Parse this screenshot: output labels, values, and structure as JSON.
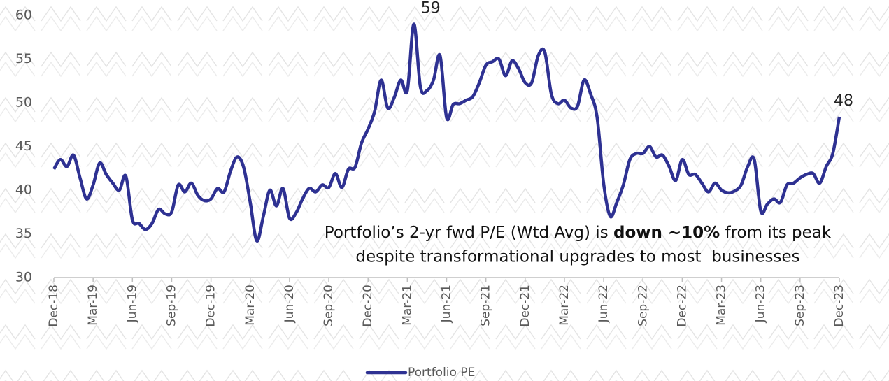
{
  "chart_data": {
    "type": "line",
    "categories": [
      "Dec-18",
      null,
      null,
      null,
      null,
      null,
      "Mar-19",
      null,
      null,
      null,
      null,
      null,
      "Jun-19",
      null,
      null,
      null,
      null,
      null,
      "Sep-19",
      null,
      null,
      null,
      null,
      null,
      "Dec-19",
      null,
      null,
      null,
      null,
      null,
      "Mar-20",
      null,
      null,
      null,
      null,
      null,
      "Jun-20",
      null,
      null,
      null,
      null,
      null,
      "Sep-20",
      null,
      null,
      null,
      null,
      null,
      "Dec-20",
      null,
      null,
      null,
      null,
      null,
      "Mar-21",
      null,
      null,
      null,
      null,
      null,
      "Jun-21",
      null,
      null,
      null,
      null,
      null,
      "Sep-21",
      null,
      null,
      null,
      null,
      null,
      "Dec-21",
      null,
      null,
      null,
      null,
      null,
      "Mar-22",
      null,
      null,
      null,
      null,
      null,
      "Jun-22",
      null,
      null,
      null,
      null,
      null,
      "Sep-22",
      null,
      null,
      null,
      null,
      null,
      "Dec-22",
      null,
      null,
      null,
      null,
      null,
      "Mar-23",
      null,
      null,
      null,
      null,
      null,
      "Jun-23",
      null,
      null,
      null,
      null,
      null,
      "Sep-23",
      null,
      null,
      null,
      null,
      null,
      "Dec-23"
    ],
    "series": [
      {
        "name": "Portfolio PE",
        "color": "#2e3192",
        "values": [
          42.4,
          43.5,
          42.7,
          44,
          41.4,
          39,
          40.6,
          43.1,
          41.8,
          40.8,
          40,
          41.6,
          36.6,
          36.2,
          35.5,
          36.2,
          37.8,
          37.3,
          37.5,
          40.6,
          39.8,
          40.8,
          39.4,
          38.8,
          39,
          40.2,
          39.8,
          42.2,
          43.8,
          42.6,
          38.6,
          34.2,
          37,
          40,
          38.2,
          40.2,
          36.8,
          37.4,
          39,
          40.2,
          39.8,
          40.6,
          40.3,
          41.9,
          40.3,
          42.4,
          42.6,
          45.4,
          47,
          49,
          52.6,
          49.4,
          50.6,
          52.6,
          51.4,
          59,
          51.8,
          51.4,
          52.6,
          55.4,
          48.3,
          49.8,
          49.9,
          50.3,
          50.7,
          52.3,
          54.3,
          54.7,
          55,
          53.1,
          54.8,
          53.9,
          52.3,
          52.3,
          55.4,
          55.8,
          51,
          49.9,
          50.3,
          49.4,
          49.6,
          52.6,
          51,
          48.3,
          40.7,
          37,
          38.6,
          40.6,
          43.5,
          44.2,
          44.2,
          45,
          43.8,
          44,
          42.7,
          41.1,
          43.5,
          41.8,
          41.8,
          40.8,
          39.8,
          40.8,
          40,
          39.7,
          39.9,
          40.6,
          42.7,
          43.5,
          37.6,
          38.4,
          39,
          38.6,
          40.6,
          40.8,
          41.4,
          41.8,
          41.9,
          40.8,
          42.7,
          44.2,
          48.4
        ],
        "value_labels": [
          null,
          null,
          null,
          null,
          null,
          null,
          null,
          null,
          null,
          null,
          null,
          null,
          null,
          null,
          null,
          null,
          null,
          null,
          null,
          null,
          null,
          null,
          null,
          null,
          null,
          null,
          null,
          null,
          null,
          null,
          null,
          null,
          null,
          null,
          null,
          null,
          null,
          null,
          null,
          null,
          null,
          null,
          null,
          null,
          null,
          null,
          null,
          null,
          null,
          null,
          null,
          null,
          null,
          null,
          null,
          "59",
          null,
          null,
          null,
          null,
          null,
          null,
          null,
          null,
          null,
          null,
          null,
          null,
          null,
          null,
          null,
          null,
          null,
          null,
          null,
          null,
          null,
          null,
          null,
          null,
          null,
          null,
          null,
          null,
          null,
          null,
          null,
          null,
          null,
          null,
          null,
          null,
          null,
          null,
          null,
          null,
          null,
          null,
          null,
          null,
          null,
          null,
          null,
          null,
          null,
          null,
          null,
          null,
          null,
          null,
          null,
          null,
          null,
          null,
          null,
          null,
          null,
          null,
          null,
          null,
          "48"
        ]
      }
    ],
    "ylim": [
      30,
      60
    ],
    "yticks": [
      30,
      35,
      40,
      45,
      50,
      55,
      60
    ],
    "grid": false,
    "legend": "bottom",
    "annotation": [
      "Portfolio’s 2-yr fwd P/E (Wtd Avg) is ",
      "down ~10%",
      " from its peak",
      "despite transformational upgrades to most  businesses"
    ]
  }
}
